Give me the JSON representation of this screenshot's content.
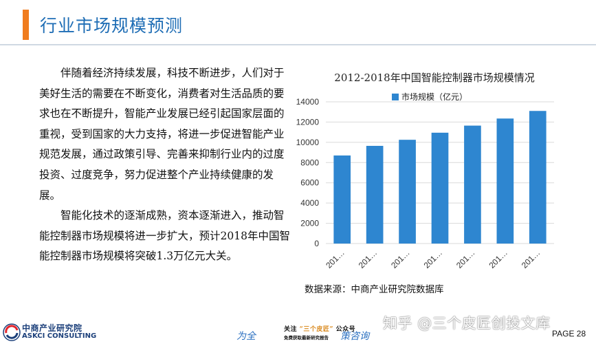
{
  "page": {
    "title": "行业市场规模预测",
    "accent_color": "#f07c1e",
    "title_color": "#1e6db5"
  },
  "body": {
    "paragraph1": "伴随着经济持续发展，科技不断进步，人们对于美好生活的需要在不断变化，消费者对生活品质的要求也在不断提升，智能产业发展已经引起国家层面的重视，受到国家的大力支持，将进一步促进智能产业规范发展，通过政策引导、完善来抑制行业内的过度投资、过度竞争，努力促进整个产业持续健康的发展。",
    "paragraph2": "智能化技术的逐渐成熟，资本逐渐进入，推动智能控制器市场规模将进一步扩大，预计2018年中国智能控制器市场规模将突破1.3万亿元大关。"
  },
  "chart_data": {
    "type": "bar",
    "title": "2012-2018年中国智能控制器市场规模情况",
    "categories": [
      "201…",
      "201…",
      "201…",
      "201…",
      "201…",
      "201…",
      "201…"
    ],
    "series": [
      {
        "name": "市场规模（亿元）",
        "values": [
          8700,
          9650,
          10250,
          10950,
          11650,
          12350,
          13100
        ],
        "color": "#2e86d0"
      }
    ],
    "xlabel": "",
    "ylabel": "",
    "ylim": [
      0,
      14000
    ],
    "yticks": [
      0,
      2000,
      4000,
      6000,
      8000,
      10000,
      12000,
      14000
    ],
    "grid": true,
    "legend": "top-center"
  },
  "source": "数据来源：中商产业研究院数据库",
  "footer": {
    "logo_cn": "中商产业研究院",
    "logo_en": "ASKCI CONSULTING",
    "slogan_left": "为全",
    "slogan_right": "策咨询",
    "wechat_prefix": "关注",
    "wechat_name": "“三个皮匠”",
    "wechat_suffix": "公众号",
    "wechat_sub": "免费获取最新研究报告",
    "watermark": "知乎 @三个皮匠创投文库",
    "page_number": "PAGE 28"
  }
}
